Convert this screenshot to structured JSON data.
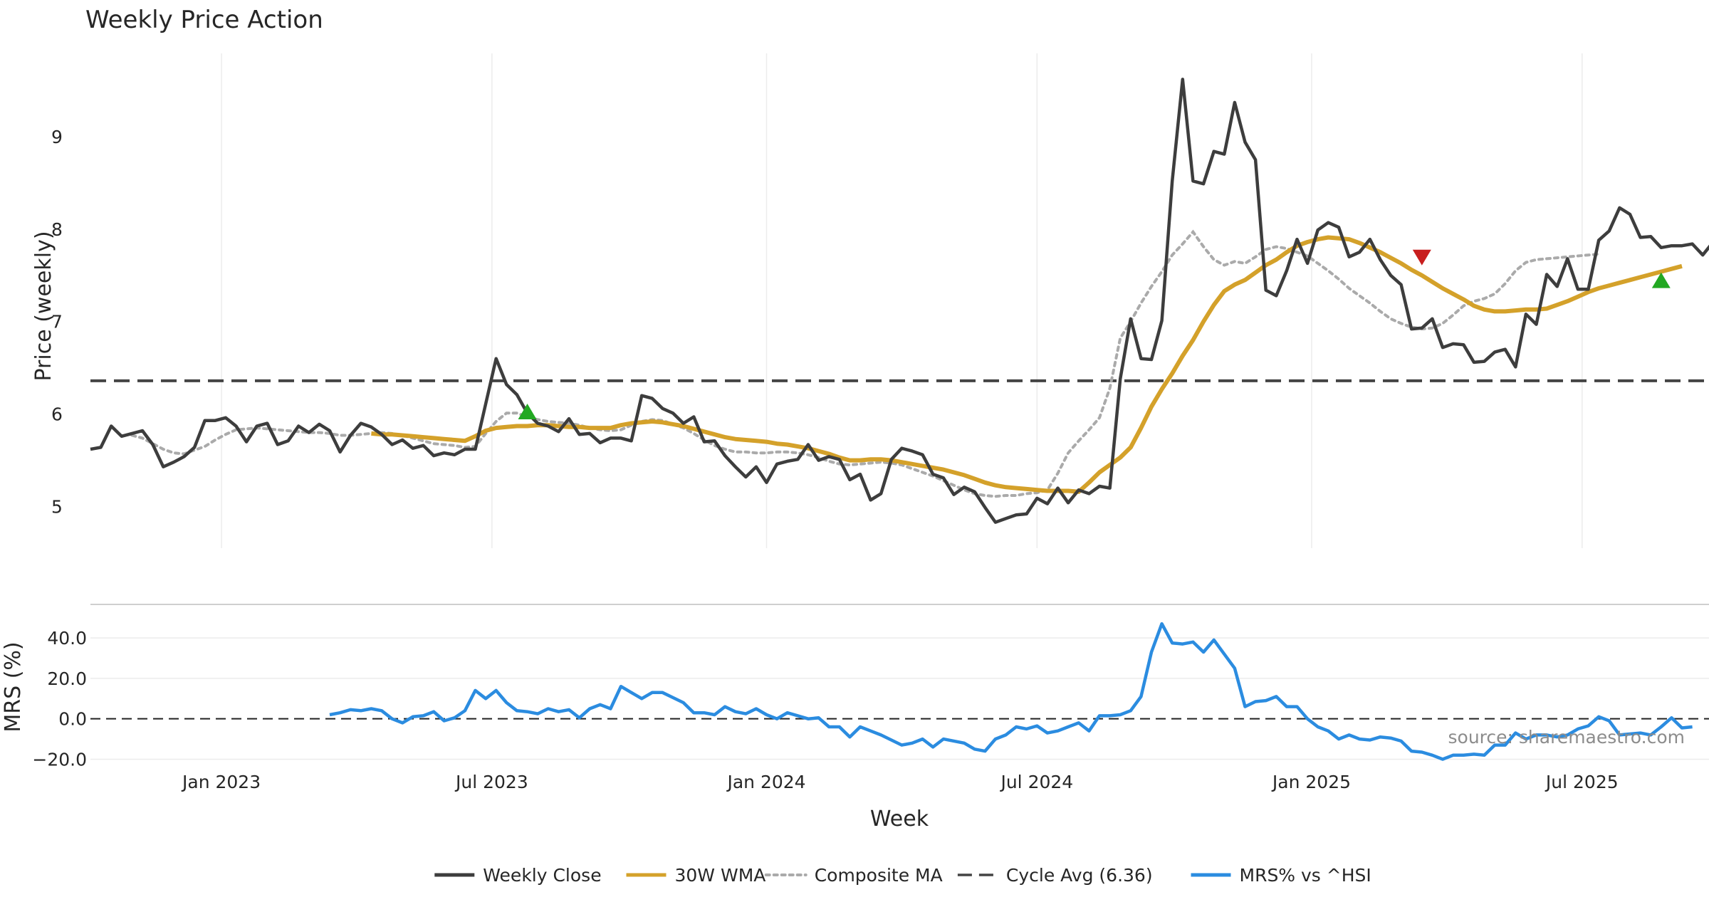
{
  "chart_data": {
    "title": "Weekly Price Action",
    "type": "line",
    "xlabel": "Week",
    "x_tick_labels": [
      "Jan 2023",
      "Jul 2023",
      "Jan 2024",
      "Jul 2024",
      "Jan 2025",
      "Jul 2025"
    ],
    "x_tick_weeks": [
      12.6,
      38.6,
      65.0,
      91.0,
      117.4,
      143.4
    ],
    "x_range_weeks": [
      0,
      155.6
    ],
    "price_panel": {
      "ylabel": "Price (weekly)",
      "ylim": [
        4.55,
        9.9
      ],
      "yticks": [
        5,
        6,
        7,
        8,
        9
      ],
      "weekly_close": [
        5.62,
        5.64,
        5.87,
        5.76,
        5.79,
        5.82,
        5.67,
        5.43,
        5.48,
        5.54,
        5.64,
        5.93,
        5.93,
        5.96,
        5.87,
        5.7,
        5.87,
        5.9,
        5.67,
        5.71,
        5.87,
        5.8,
        5.89,
        5.82,
        5.59,
        5.77,
        5.9,
        5.86,
        5.78,
        5.67,
        5.72,
        5.63,
        5.66,
        5.55,
        5.58,
        5.56,
        5.62,
        5.62,
        6.11,
        6.6,
        6.32,
        6.21,
        6.01,
        5.9,
        5.87,
        5.81,
        5.95,
        5.78,
        5.79,
        5.69,
        5.74,
        5.74,
        5.71,
        6.2,
        6.17,
        6.06,
        6.01,
        5.9,
        5.97,
        5.7,
        5.71,
        5.55,
        5.43,
        5.32,
        5.43,
        5.26,
        5.46,
        5.49,
        5.51,
        5.67,
        5.5,
        5.54,
        5.51,
        5.29,
        5.35,
        5.07,
        5.14,
        5.51,
        5.63,
        5.6,
        5.56,
        5.35,
        5.31,
        5.13,
        5.21,
        5.16,
        4.99,
        4.83,
        4.87,
        4.91,
        4.92,
        5.09,
        5.03,
        5.2,
        5.04,
        5.18,
        5.14,
        5.22,
        5.2,
        6.38,
        7.03,
        6.6,
        6.59,
        7.01,
        8.52,
        9.62,
        8.52,
        8.49,
        8.84,
        8.81,
        9.37,
        8.94,
        8.75,
        7.34,
        7.28,
        7.55,
        7.89,
        7.63,
        7.99,
        8.07,
        8.02,
        7.7,
        7.75,
        7.89,
        7.67,
        7.5,
        7.4,
        6.92,
        6.93,
        7.03,
        6.72,
        6.76,
        6.75,
        6.56,
        6.57,
        6.67,
        6.7,
        6.51,
        7.08,
        6.97,
        7.51,
        7.38,
        7.68,
        7.35,
        7.35,
        7.88,
        7.98,
        8.23,
        8.16,
        7.91,
        7.92,
        7.8,
        7.82,
        7.82,
        7.84,
        7.72,
        7.86
      ],
      "wma_30w": {
        "start_week": 27,
        "values": [
          5.79,
          5.78,
          5.78,
          5.77,
          5.76,
          5.75,
          5.74,
          5.73,
          5.72,
          5.71,
          5.76,
          5.82,
          5.85,
          5.86,
          5.87,
          5.87,
          5.88,
          5.88,
          5.87,
          5.86,
          5.86,
          5.85,
          5.85,
          5.85,
          5.88,
          5.9,
          5.91,
          5.92,
          5.91,
          5.89,
          5.87,
          5.84,
          5.81,
          5.78,
          5.75,
          5.73,
          5.72,
          5.71,
          5.7,
          5.68,
          5.67,
          5.65,
          5.63,
          5.6,
          5.57,
          5.53,
          5.5,
          5.5,
          5.51,
          5.51,
          5.5,
          5.48,
          5.46,
          5.44,
          5.42,
          5.4,
          5.37,
          5.34,
          5.3,
          5.26,
          5.23,
          5.21,
          5.2,
          5.19,
          5.18,
          5.17,
          5.17,
          5.17,
          5.16,
          5.26,
          5.37,
          5.45,
          5.53,
          5.64,
          5.85,
          6.08,
          6.27,
          6.44,
          6.63,
          6.8,
          7.0,
          7.18,
          7.33,
          7.4,
          7.45,
          7.53,
          7.61,
          7.67,
          7.75,
          7.82,
          7.86,
          7.89,
          7.91,
          7.9,
          7.89,
          7.85,
          7.8,
          7.75,
          7.69,
          7.63,
          7.56,
          7.5,
          7.43,
          7.36,
          7.3,
          7.24,
          7.17,
          7.13,
          7.11,
          7.11,
          7.12,
          7.13,
          7.13,
          7.14,
          7.18,
          7.22,
          7.27,
          7.32,
          7.36,
          7.39,
          7.42,
          7.45,
          7.48,
          7.51,
          7.54,
          7.57,
          7.6
        ]
      },
      "composite_ma": {
        "start_week": 4,
        "values": [
          5.77,
          5.74,
          5.68,
          5.62,
          5.58,
          5.57,
          5.61,
          5.65,
          5.72,
          5.78,
          5.83,
          5.84,
          5.85,
          5.84,
          5.83,
          5.82,
          5.81,
          5.8,
          5.8,
          5.79,
          5.77,
          5.77,
          5.78,
          5.79,
          5.8,
          5.79,
          5.77,
          5.74,
          5.71,
          5.68,
          5.67,
          5.66,
          5.64,
          5.65,
          5.79,
          5.92,
          6.01,
          6.01,
          5.97,
          5.94,
          5.92,
          5.91,
          5.9,
          5.88,
          5.85,
          5.83,
          5.82,
          5.83,
          5.88,
          5.92,
          5.94,
          5.93,
          5.89,
          5.85,
          5.79,
          5.72,
          5.66,
          5.62,
          5.59,
          5.59,
          5.58,
          5.58,
          5.59,
          5.59,
          5.58,
          5.56,
          5.53,
          5.49,
          5.46,
          5.45,
          5.46,
          5.47,
          5.48,
          5.47,
          5.45,
          5.41,
          5.37,
          5.33,
          5.28,
          5.23,
          5.18,
          5.14,
          5.12,
          5.11,
          5.12,
          5.12,
          5.14,
          5.15,
          5.18,
          5.36,
          5.58,
          5.71,
          5.83,
          5.96,
          6.28,
          6.82,
          7.0,
          7.2,
          7.38,
          7.54,
          7.72,
          7.84,
          7.97,
          7.81,
          7.67,
          7.61,
          7.65,
          7.63,
          7.7,
          7.78,
          7.81,
          7.79,
          7.75,
          7.71,
          7.63,
          7.55,
          7.46,
          7.36,
          7.28,
          7.2,
          7.11,
          7.03,
          6.98,
          6.94,
          6.92,
          6.93,
          6.98,
          7.07,
          7.17,
          7.22,
          7.25,
          7.3,
          7.41,
          7.55,
          7.64,
          7.67,
          7.68,
          7.69,
          7.7,
          7.71,
          7.72,
          7.73
        ]
      },
      "cycle_avg": 6.36,
      "buy_signals": [
        {
          "week": 42,
          "price": 6.02
        },
        {
          "week": 151,
          "price": 7.44
        }
      ],
      "sell_signals": [
        {
          "week": 128,
          "price": 7.7
        }
      ]
    },
    "mrs_panel": {
      "ylabel": "MRS (%)",
      "ylim": [
        -23,
        52
      ],
      "yticks": [
        40.0,
        20.0,
        0.0,
        -20.0
      ],
      "ytick_labels": [
        "40.0",
        "20.0",
        "0.0",
        "−20.0"
      ],
      "zero_line": 0.0,
      "series_name": "MRS% vs ^HSI",
      "start_week": 23,
      "values": [
        2.0,
        3.0,
        4.5,
        4.0,
        5.0,
        4.0,
        0.0,
        -2.0,
        1.0,
        1.5,
        3.5,
        -1.0,
        0.5,
        4.0,
        14.0,
        10.0,
        14.0,
        8.0,
        4.0,
        3.5,
        2.5,
        5.0,
        3.5,
        4.5,
        0.5,
        5.0,
        7.0,
        5.0,
        16.0,
        13.0,
        10.0,
        13.0,
        13.0,
        10.5,
        8.0,
        3.0,
        3.0,
        2.0,
        6.0,
        3.5,
        2.5,
        5.0,
        2.0,
        0.0,
        3.0,
        1.5,
        0.0,
        0.5,
        -4.0,
        -4.0,
        -9.0,
        -4.0,
        -6.0,
        -8.0,
        -10.5,
        -13.0,
        -12.0,
        -10.0,
        -14.0,
        -10.0,
        -11.0,
        -12.0,
        -15.0,
        -16.0,
        -10.0,
        -8.0,
        -4.0,
        -5.0,
        -3.5,
        -7.0,
        -6.0,
        -4.0,
        -2.0,
        -6.0,
        1.5,
        1.5,
        2.0,
        4.0,
        11.0,
        33.0,
        47.0,
        37.5,
        37.0,
        38.0,
        33.0,
        39.0,
        32.0,
        25.0,
        6.0,
        8.5,
        9.0,
        11.0,
        6.0,
        6.0,
        0.0,
        -4.0,
        -6.0,
        -10.0,
        -8.0,
        -10.0,
        -10.5,
        -9.0,
        -9.5,
        -11.0,
        -16.0,
        -16.5,
        -18.0,
        -20.0,
        -18.0,
        -18.0,
        -17.5,
        -18.0,
        -13.0,
        -13.0,
        -7.0,
        -10.0,
        -8.0,
        -8.0,
        -9.0,
        -8.0,
        -5.0,
        -3.5,
        1.0,
        -1.0,
        -8.0,
        -7.5,
        -7.0,
        -8.0,
        -4.0,
        0.5,
        -4.5,
        -4.0
      ]
    },
    "legend": [
      {
        "label": "Weekly Close",
        "color": "#3d3d3d",
        "style": "solid"
      },
      {
        "label": "30W WMA",
        "color": "#d4a12a",
        "style": "solid"
      },
      {
        "label": "Composite MA",
        "color": "#aaaaaa",
        "style": "dotted"
      },
      {
        "label": "Cycle Avg (6.36)",
        "color": "#444444",
        "style": "dashed"
      },
      {
        "label": "MRS% vs ^HSI",
        "color": "#2b8ce0",
        "style": "solid"
      }
    ],
    "legend_position": "bottom-center",
    "source_note": "source: sharemaestro.com",
    "colors": {
      "close": "#3d3d3d",
      "wma": "#d4a12a",
      "composite": "#aaaaaa",
      "cycle": "#444444",
      "mrs": "#2b8ce0",
      "buy": "#22a822",
      "sell": "#c81e1e"
    }
  }
}
